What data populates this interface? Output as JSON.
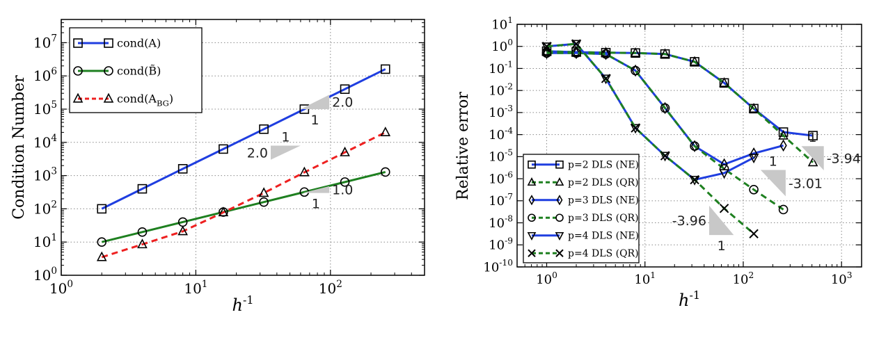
{
  "chart_data": [
    {
      "type": "line",
      "xscale": "log",
      "yscale": "log",
      "xlim": [
        1,
        500
      ],
      "ylim": [
        1,
        50000000
      ],
      "xlabel": "h^-1",
      "ylabel": "Condition Number",
      "x_ticks": [
        "10^0",
        "10^1",
        "10^2"
      ],
      "y_ticks": [
        "10^0",
        "10^1",
        "10^2",
        "10^3",
        "10^4",
        "10^5",
        "10^6",
        "10^7"
      ],
      "grid": true,
      "legend_position": "top-left",
      "series": [
        {
          "name": "cond(A)",
          "color": "#1f3ee0",
          "marker": "square",
          "dash": "solid",
          "x": [
            2,
            4,
            8,
            16,
            32,
            64,
            128,
            256
          ],
          "y": [
            100,
            400,
            1600,
            6300,
            25000,
            100000,
            400000,
            1600000
          ]
        },
        {
          "name": "cond(B̃)",
          "color": "#1e8020",
          "marker": "circle",
          "dash": "solid",
          "x": [
            2,
            4,
            8,
            16,
            32,
            64,
            128,
            256
          ],
          "y": [
            10,
            20,
            40,
            80,
            160,
            320,
            640,
            1280
          ]
        },
        {
          "name": "cond(A_BG)",
          "color": "#ee2020",
          "marker": "triangle",
          "dash": "dashed",
          "x": [
            2,
            4,
            8,
            16,
            32,
            64,
            128,
            256
          ],
          "y": [
            3.5,
            8.5,
            21,
            78,
            300,
            1250,
            5000,
            20000
          ]
        }
      ],
      "slope_annotations": [
        {
          "slope_label": "2.0",
          "run_label": "1",
          "x1": 60,
          "x2": 98,
          "y1": 100000,
          "y2": 270000,
          "orient": "lower",
          "slope_pos": "right",
          "run_pos": "below"
        },
        {
          "slope_label": "2.0",
          "run_label": "1",
          "x1": 36,
          "x2": 60,
          "y1": 3000,
          "y2": 8000,
          "orient": "upper",
          "slope_pos": "left",
          "run_pos": "above"
        },
        {
          "slope_label": "1.0",
          "run_label": "1",
          "x1": 62,
          "x2": 98,
          "y1": 300,
          "y2": 480,
          "orient": "lower",
          "slope_pos": "right",
          "run_pos": "below"
        }
      ]
    },
    {
      "type": "line",
      "xscale": "log",
      "yscale": "log",
      "xlim": [
        0.5,
        1600
      ],
      "ylim": [
        1e-10,
        10
      ],
      "xlabel": "h^-1",
      "ylabel": "Relative error",
      "x_ticks": [
        "10^0",
        "10^1",
        "10^2",
        "10^3"
      ],
      "y_ticks": [
        "10^-10",
        "10^-9",
        "10^-8",
        "10^-7",
        "10^-6",
        "10^-5",
        "10^-4",
        "10^-3",
        "10^-2",
        "10^-1",
        "10^0",
        "10^1"
      ],
      "grid": true,
      "legend_position": "bottom-left",
      "series": [
        {
          "name": "p=2 DLS (NE)",
          "color": "#1f3ee0",
          "marker": "square",
          "dash": "solid",
          "x": [
            1,
            2,
            4,
            8,
            16,
            32,
            64,
            128,
            256,
            512
          ],
          "y": [
            0.6,
            0.55,
            0.52,
            0.5,
            0.45,
            0.2,
            0.022,
            0.0015,
            0.00013,
            9e-05
          ]
        },
        {
          "name": "p=2 DLS (QR)",
          "color": "#1e8020",
          "marker": "triangle",
          "dash": "dashed",
          "x": [
            1,
            2,
            4,
            8,
            16,
            32,
            64,
            128,
            256,
            512
          ],
          "y": [
            0.6,
            0.55,
            0.52,
            0.5,
            0.45,
            0.2,
            0.022,
            0.0015,
            9e-05,
            5.5e-06
          ]
        },
        {
          "name": "p=3 DLS (NE)",
          "color": "#1f3ee0",
          "marker": "diamond",
          "dash": "solid",
          "x": [
            1,
            2,
            4,
            8,
            16,
            32,
            64,
            128,
            256
          ],
          "y": [
            0.5,
            0.5,
            0.45,
            0.08,
            0.0016,
            3e-05,
            4.5e-06,
            1.4e-05,
            3.2e-05
          ]
        },
        {
          "name": "p=3 DLS (QR)",
          "color": "#1e8020",
          "marker": "circle",
          "dash": "dashed",
          "x": [
            1,
            2,
            4,
            8,
            16,
            32,
            64,
            128,
            256
          ],
          "y": [
            0.5,
            0.5,
            0.45,
            0.08,
            0.0016,
            3e-05,
            2.8e-06,
            3.2e-07,
            4e-08
          ]
        },
        {
          "name": "p=4 DLS (NE)",
          "color": "#1f3ee0",
          "marker": "triangle-down",
          "dash": "solid",
          "x": [
            1,
            2,
            4,
            8,
            16,
            32,
            64,
            128
          ],
          "y": [
            1.0,
            1.3,
            0.035,
            0.0002,
            1.1e-05,
            9e-07,
            1.8e-06,
            9e-06
          ]
        },
        {
          "name": "p=4 DLS (QR)",
          "color": "#1e8020",
          "marker": "x",
          "dash": "dashed",
          "x": [
            1,
            2,
            4,
            8,
            16,
            32,
            64,
            128
          ],
          "y": [
            1.0,
            1.3,
            0.035,
            0.0002,
            1.1e-05,
            9e-07,
            4.5e-08,
            3.2e-09
          ]
        }
      ],
      "slope_annotations": [
        {
          "slope_label": "-3.94",
          "run_label": "1",
          "x1": 390,
          "x2": 660,
          "y1": 3e-05,
          "y2": 2.4e-06,
          "orient": "upper-left",
          "slope_pos": "right",
          "run_pos": "above"
        },
        {
          "slope_label": "-3.01",
          "run_label": "1",
          "x1": 150,
          "x2": 270,
          "y1": 2.5e-06,
          "y2": 1.6e-07,
          "orient": "upper-left",
          "slope_pos": "right",
          "run_pos": "above"
        },
        {
          "slope_label": "-3.96",
          "run_label": "1",
          "x1": 45,
          "x2": 80,
          "y1": 6e-08,
          "y2": 2.8e-09,
          "orient": "lower-right",
          "slope_pos": "left",
          "run_pos": "below"
        }
      ]
    }
  ]
}
